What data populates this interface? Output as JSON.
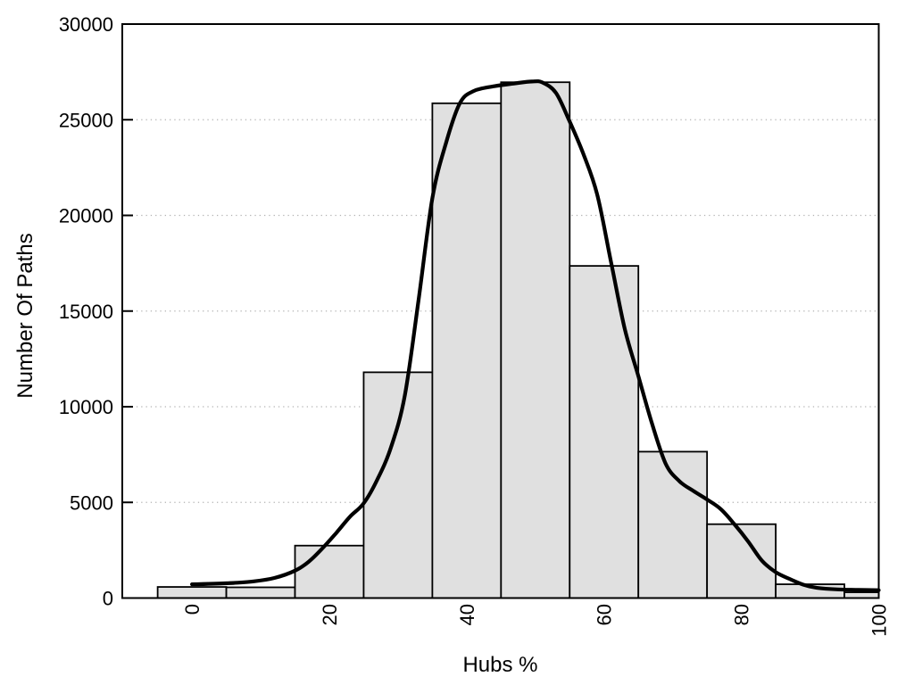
{
  "chart_data": {
    "type": "bar",
    "subtype": "histogram-with-density-curve",
    "title": "",
    "xlabel": "Hubs %",
    "ylabel": "Number Of Paths",
    "xlim": [
      -10.15,
      100
    ],
    "ylim": [
      0,
      30000
    ],
    "xticks": [
      0,
      20,
      40,
      60,
      80,
      100
    ],
    "yticks": [
      0,
      5000,
      10000,
      15000,
      20000,
      25000,
      30000
    ],
    "xtick_rotation_deg": -90,
    "legend": "none",
    "grid": {
      "horizontal": true,
      "vertical": false,
      "style": "dotted",
      "color": "#b3b3b3"
    },
    "colors": {
      "background": "#ffffff",
      "bar_fill": "#e0e0e0",
      "bar_stroke": "#000000",
      "curve": "#000000",
      "frame": "#000000",
      "text": "#000000"
    },
    "bins": [
      {
        "x0": -5,
        "x1": 5,
        "count": 580
      },
      {
        "x0": 5,
        "x1": 15,
        "count": 560
      },
      {
        "x0": 15,
        "x1": 25,
        "count": 2740
      },
      {
        "x0": 25,
        "x1": 35,
        "count": 11800
      },
      {
        "x0": 35,
        "x1": 45,
        "count": 25860
      },
      {
        "x0": 45,
        "x1": 55,
        "count": 26960
      },
      {
        "x0": 55,
        "x1": 65,
        "count": 17360
      },
      {
        "x0": 65,
        "x1": 75,
        "count": 7650
      },
      {
        "x0": 75,
        "x1": 85,
        "count": 3860
      },
      {
        "x0": 85,
        "x1": 95,
        "count": 720
      },
      {
        "x0": 95,
        "x1": 100,
        "count": 300
      }
    ],
    "density_curve": [
      [
        0,
        720
      ],
      [
        3,
        745
      ],
      [
        6,
        790
      ],
      [
        9,
        870
      ],
      [
        12,
        1050
      ],
      [
        15,
        1430
      ],
      [
        17,
        1900
      ],
      [
        19,
        2600
      ],
      [
        21,
        3400
      ],
      [
        23,
        4250
      ],
      [
        25,
        4950
      ],
      [
        27,
        6200
      ],
      [
        29,
        7900
      ],
      [
        31,
        10600
      ],
      [
        33,
        15600
      ],
      [
        35,
        20900
      ],
      [
        37,
        23800
      ],
      [
        39,
        25860
      ],
      [
        41,
        26500
      ],
      [
        44,
        26750
      ],
      [
        47,
        26900
      ],
      [
        49.5,
        27000
      ],
      [
        51,
        26950
      ],
      [
        53,
        26400
      ],
      [
        55,
        24900
      ],
      [
        57,
        23200
      ],
      [
        59,
        21100
      ],
      [
        61,
        17600
      ],
      [
        63,
        14100
      ],
      [
        65,
        11600
      ],
      [
        67,
        9100
      ],
      [
        69,
        7000
      ],
      [
        71,
        6100
      ],
      [
        73,
        5600
      ],
      [
        75,
        5150
      ],
      [
        77,
        4650
      ],
      [
        79,
        3850
      ],
      [
        81,
        2950
      ],
      [
        83,
        1950
      ],
      [
        85,
        1350
      ],
      [
        87,
        1000
      ],
      [
        89,
        700
      ],
      [
        91,
        530
      ],
      [
        94,
        450
      ],
      [
        97,
        425
      ],
      [
        100,
        410
      ]
    ]
  }
}
